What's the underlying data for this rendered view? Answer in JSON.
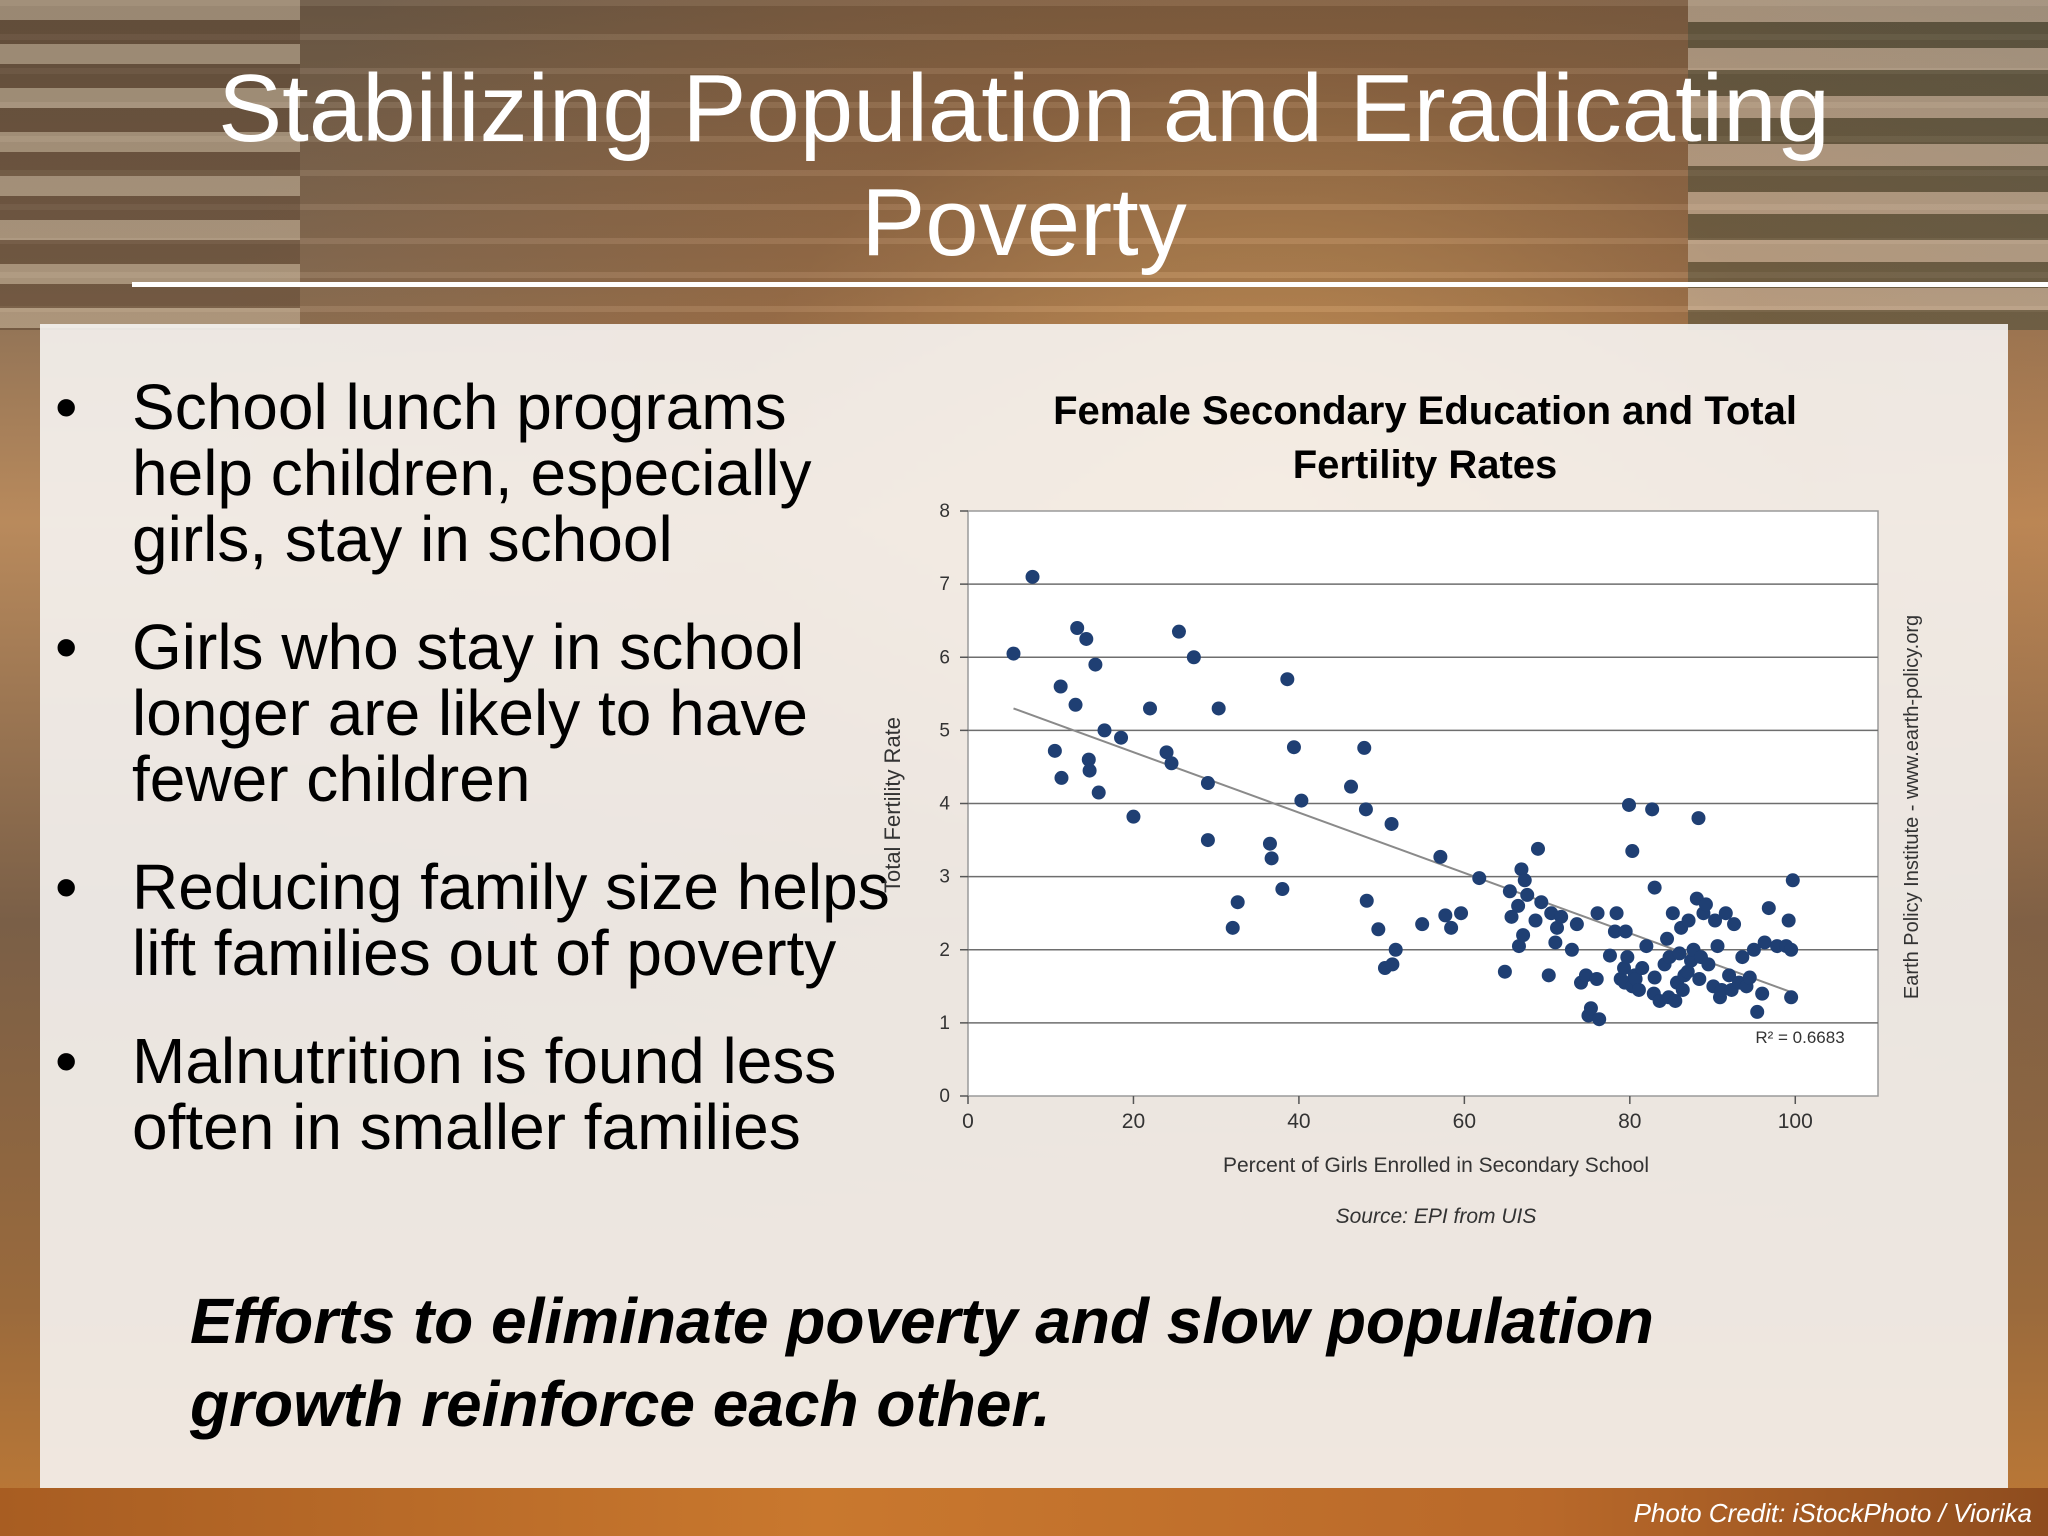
{
  "slide": {
    "title_line1": "Stabilizing Population and Eradicating",
    "title_line2": "Poverty",
    "bullets": [
      "School lunch programs help children, especially girls, stay in school",
      "Girls who stay in school longer are likely to have fewer children",
      "Reducing family size helps lift families out of poverty",
      "Malnutrition is found less often in smaller families"
    ],
    "bullet_symbol": "•",
    "conclusion_line1": "Efforts to eliminate poverty and slow population",
    "conclusion_line2": "growth reinforce each other.",
    "photo_credit": "Photo Credit: iStockPhoto / Viorika"
  },
  "chart_data": {
    "type": "scatter",
    "title_line1": "Female Secondary Education and Total",
    "title_line2": "Fertility Rates",
    "xlabel": "Percent of Girls Enrolled in Secondary School",
    "ylabel": "Total Fertility Rate",
    "xlim": [
      0,
      110
    ],
    "ylim": [
      0,
      8
    ],
    "xticks": [
      0,
      20,
      40,
      60,
      80,
      100
    ],
    "yticks": [
      0,
      1,
      2,
      3,
      4,
      5,
      6,
      7,
      8
    ],
    "grid": "horizontal",
    "source": "Source: EPI from UIS",
    "side_label": "Earth Policy Institute - www.earth-policy.org",
    "r_squared_label": "R² = 0.6683",
    "trendline": {
      "x": [
        5.5,
        100
      ],
      "y": [
        5.3,
        1.4
      ]
    },
    "point_color": "#1f3f73",
    "points": [
      [
        5.5,
        6.05
      ],
      [
        7.8,
        7.1
      ],
      [
        10.5,
        4.72
      ],
      [
        11.2,
        5.6
      ],
      [
        11.3,
        4.35
      ],
      [
        13,
        5.35
      ],
      [
        13.2,
        6.4
      ],
      [
        14.3,
        6.25
      ],
      [
        14.6,
        4.6
      ],
      [
        14.7,
        4.45
      ],
      [
        15.4,
        5.9
      ],
      [
        15.8,
        4.15
      ],
      [
        16.5,
        5.0
      ],
      [
        18.5,
        4.9
      ],
      [
        20,
        3.82
      ],
      [
        22,
        5.3
      ],
      [
        24,
        4.7
      ],
      [
        24.6,
        4.55
      ],
      [
        25.5,
        6.35
      ],
      [
        27.3,
        6.0
      ],
      [
        29,
        4.28
      ],
      [
        29,
        3.5
      ],
      [
        30.3,
        5.3
      ],
      [
        32,
        2.3
      ],
      [
        32.6,
        2.65
      ],
      [
        36.5,
        3.45
      ],
      [
        36.7,
        3.25
      ],
      [
        38,
        2.83
      ],
      [
        38.6,
        5.7
      ],
      [
        39.4,
        4.77
      ],
      [
        40.3,
        4.04
      ],
      [
        46.3,
        4.23
      ],
      [
        47.9,
        4.76
      ],
      [
        48.1,
        3.92
      ],
      [
        48.2,
        2.67
      ],
      [
        49.6,
        2.28
      ],
      [
        50.4,
        1.75
      ],
      [
        51.3,
        1.8
      ],
      [
        51.2,
        3.72
      ],
      [
        51.7,
        2.0
      ],
      [
        54.9,
        2.35
      ],
      [
        57.1,
        3.27
      ],
      [
        57.7,
        2.47
      ],
      [
        58.4,
        2.3
      ],
      [
        59.6,
        2.5
      ],
      [
        61.8,
        2.98
      ],
      [
        64.9,
        1.7
      ],
      [
        65.5,
        2.8
      ],
      [
        65.7,
        2.45
      ],
      [
        66.5,
        2.6
      ],
      [
        66.6,
        2.05
      ],
      [
        66.9,
        3.1
      ],
      [
        67.1,
        2.2
      ],
      [
        67.3,
        2.95
      ],
      [
        67.6,
        2.75
      ],
      [
        68.6,
        2.4
      ],
      [
        68.9,
        3.38
      ],
      [
        69.3,
        2.65
      ],
      [
        70.2,
        1.65
      ],
      [
        70.5,
        2.5
      ],
      [
        71,
        2.1
      ],
      [
        71.2,
        2.3
      ],
      [
        71.7,
        2.45
      ],
      [
        73,
        2.0
      ],
      [
        73.6,
        2.35
      ],
      [
        74.1,
        1.55
      ],
      [
        74.7,
        1.65
      ],
      [
        75,
        1.1
      ],
      [
        75.3,
        1.2
      ],
      [
        76,
        1.6
      ],
      [
        76.1,
        2.5
      ],
      [
        76.3,
        1.05
      ],
      [
        77.6,
        1.92
      ],
      [
        78.2,
        2.25
      ],
      [
        78.4,
        2.5
      ],
      [
        78.9,
        1.6
      ],
      [
        79.3,
        1.75
      ],
      [
        79.4,
        1.55
      ],
      [
        79.5,
        2.25
      ],
      [
        79.7,
        1.9
      ],
      [
        79.9,
        3.98
      ],
      [
        80.3,
        1.5
      ],
      [
        80.3,
        3.35
      ],
      [
        80.6,
        1.65
      ],
      [
        80.7,
        1.6
      ],
      [
        81.1,
        1.45
      ],
      [
        81.5,
        1.75
      ],
      [
        82,
        2.05
      ],
      [
        82.7,
        3.92
      ],
      [
        82.9,
        1.4
      ],
      [
        83,
        1.62
      ],
      [
        83,
        2.85
      ],
      [
        83.6,
        1.3
      ],
      [
        84.2,
        1.8
      ],
      [
        84.5,
        2.15
      ],
      [
        84.7,
        1.35
      ],
      [
        84.8,
        1.9
      ],
      [
        85.2,
        2.5
      ],
      [
        85.5,
        1.3
      ],
      [
        85.7,
        1.55
      ],
      [
        86,
        1.95
      ],
      [
        86.2,
        2.3
      ],
      [
        86.4,
        1.45
      ],
      [
        86.6,
        1.65
      ],
      [
        87,
        1.7
      ],
      [
        87.1,
        2.4
      ],
      [
        87.4,
        1.85
      ],
      [
        87.7,
        2.0
      ],
      [
        88.1,
        2.7
      ],
      [
        88.3,
        3.8
      ],
      [
        88.4,
        1.6
      ],
      [
        88.6,
        1.9
      ],
      [
        88.9,
        2.5
      ],
      [
        89.2,
        2.62
      ],
      [
        89.5,
        1.8
      ],
      [
        90.1,
        1.5
      ],
      [
        90.3,
        2.4
      ],
      [
        90.6,
        2.05
      ],
      [
        90.9,
        1.35
      ],
      [
        91.1,
        1.45
      ],
      [
        91.6,
        2.5
      ],
      [
        92,
        1.65
      ],
      [
        92.3,
        1.45
      ],
      [
        92.6,
        2.35
      ],
      [
        93.2,
        1.55
      ],
      [
        93.6,
        1.9
      ],
      [
        94.1,
        1.5
      ],
      [
        94.5,
        1.62
      ],
      [
        95,
        2.0
      ],
      [
        95.4,
        1.15
      ],
      [
        96,
        1.4
      ],
      [
        96.3,
        2.1
      ],
      [
        96.8,
        2.57
      ],
      [
        97.8,
        2.05
      ],
      [
        98.9,
        2.05
      ],
      [
        99.2,
        2.4
      ],
      [
        99.5,
        1.35
      ],
      [
        99.5,
        2.0
      ],
      [
        99.7,
        2.95
      ]
    ]
  }
}
